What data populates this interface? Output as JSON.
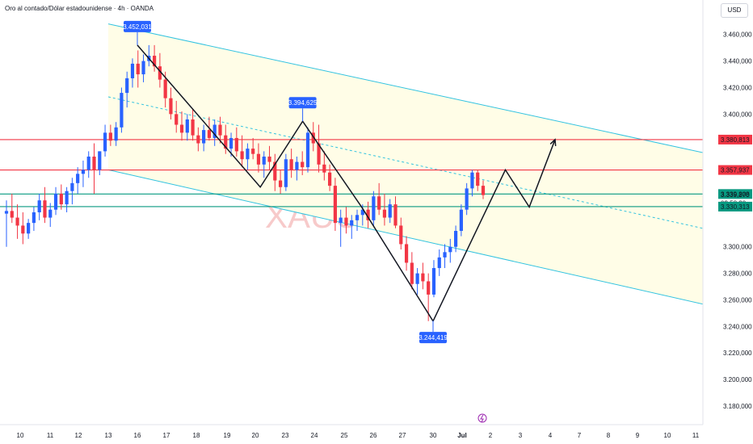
{
  "header": {
    "title": "Oro al contado/Dólar estadounidense · 4h · OANDA",
    "currency": "USD",
    "watermark": "XAUUSD 4h"
  },
  "chart_data": {
    "type": "candlestick",
    "y_ticks": [
      "3.460,000",
      "3.440,000",
      "3.420,000",
      "3.400,000",
      "3.300,000",
      "3.280,000",
      "3.260,000",
      "3.240,000",
      "3.220,000",
      "3.200,000",
      "3.180,000"
    ],
    "y_tick_values": [
      3460,
      3440,
      3420,
      3400,
      3300,
      3280,
      3260,
      3240,
      3220,
      3200,
      3180
    ],
    "ylim": [
      3166,
      3486
    ],
    "x_labels": [
      "10",
      "11",
      "12",
      "13",
      "16",
      "17",
      "18",
      "19",
      "20",
      "23",
      "24",
      "25",
      "26",
      "27",
      "30",
      "Jul",
      "2",
      "3",
      "4",
      "7",
      "8",
      "9",
      "10",
      "11"
    ],
    "colors": {
      "up": "#2962ff",
      "down": "#f23645",
      "channel": "#33c3e0",
      "channel_fill": "#fffde7",
      "resistance": "#f23645",
      "support": "#089981",
      "pattern": "#131722"
    },
    "price_labels": [
      {
        "text": "3.380,813",
        "value": 3380.8,
        "color": "#f23645"
      },
      {
        "text": "3.357,937",
        "value": 3357.9,
        "color": "#f23645"
      },
      {
        "text": "3.339,808",
        "value": 3339.8,
        "color": "#089981"
      },
      {
        "text": "3.339,270",
        "value": 3339.3,
        "color": "#f23645"
      },
      {
        "text": "02:58:30",
        "value": 3333.0,
        "color": "#f23645"
      },
      {
        "text": "3.330,313",
        "value": 3330.3,
        "color": "#089981"
      }
    ],
    "annotations": [
      {
        "text": "3.452,031",
        "x": 16,
        "value": 3452
      },
      {
        "text": "3.394,625",
        "x": 23.6,
        "value": 3394.6
      },
      {
        "text": "3.244,419",
        "x": 30,
        "value": 3244.4
      }
    ],
    "horizontal_lines": [
      {
        "value": 3380.8,
        "color": "#f23645"
      },
      {
        "value": 3357.9,
        "color": "#f23645"
      },
      {
        "value": 3339.8,
        "color": "#089981"
      },
      {
        "value": 3330.3,
        "color": "#089981"
      }
    ],
    "channel": {
      "upper": [
        [
          13,
          3468
        ],
        [
          61,
          3280
        ]
      ],
      "middle": [
        [
          13,
          3413
        ],
        [
          61,
          3221
        ]
      ],
      "lower": [
        [
          13,
          3358
        ],
        [
          61,
          3162
        ]
      ]
    },
    "pattern_path": [
      [
        16,
        3452
      ],
      [
        20.5,
        3345
      ],
      [
        23.6,
        3394.6
      ],
      [
        25.6,
        3330
      ],
      [
        30,
        3244
      ],
      [
        32.5,
        3358
      ],
      [
        33.3,
        3330
      ],
      [
        34.5,
        3380.8
      ]
    ],
    "candles": [
      {
        "o": 3325,
        "h": 3335,
        "l": 3300,
        "c": 3327
      },
      {
        "o": 3327,
        "h": 3340,
        "l": 3318,
        "c": 3322
      },
      {
        "o": 3322,
        "h": 3332,
        "l": 3306,
        "c": 3316
      },
      {
        "o": 3316,
        "h": 3326,
        "l": 3302,
        "c": 3310
      },
      {
        "o": 3310,
        "h": 3321,
        "l": 3306,
        "c": 3318
      },
      {
        "o": 3318,
        "h": 3330,
        "l": 3312,
        "c": 3326
      },
      {
        "o": 3326,
        "h": 3340,
        "l": 3320,
        "c": 3335
      },
      {
        "o": 3335,
        "h": 3345,
        "l": 3318,
        "c": 3322
      },
      {
        "o": 3322,
        "h": 3333,
        "l": 3315,
        "c": 3328
      },
      {
        "o": 3328,
        "h": 3345,
        "l": 3324,
        "c": 3340
      },
      {
        "o": 3340,
        "h": 3347,
        "l": 3328,
        "c": 3332
      },
      {
        "o": 3332,
        "h": 3345,
        "l": 3326,
        "c": 3342
      },
      {
        "o": 3342,
        "h": 3352,
        "l": 3332,
        "c": 3348
      },
      {
        "o": 3348,
        "h": 3360,
        "l": 3340,
        "c": 3355
      },
      {
        "o": 3355,
        "h": 3365,
        "l": 3345,
        "c": 3358
      },
      {
        "o": 3358,
        "h": 3372,
        "l": 3352,
        "c": 3368
      },
      {
        "o": 3368,
        "h": 3378,
        "l": 3340,
        "c": 3358
      },
      {
        "o": 3358,
        "h": 3372,
        "l": 3354,
        "c": 3372
      },
      {
        "o": 3372,
        "h": 3392,
        "l": 3368,
        "c": 3386
      },
      {
        "o": 3386,
        "h": 3392,
        "l": 3376,
        "c": 3380
      },
      {
        "o": 3380,
        "h": 3394,
        "l": 3376,
        "c": 3390
      },
      {
        "o": 3390,
        "h": 3420,
        "l": 3386,
        "c": 3416
      },
      {
        "o": 3416,
        "h": 3432,
        "l": 3405,
        "c": 3427
      },
      {
        "o": 3427,
        "h": 3442,
        "l": 3420,
        "c": 3438
      },
      {
        "o": 3438,
        "h": 3448,
        "l": 3420,
        "c": 3430
      },
      {
        "o": 3430,
        "h": 3445,
        "l": 3424,
        "c": 3440
      },
      {
        "o": 3440,
        "h": 3452,
        "l": 3436,
        "c": 3444
      },
      {
        "o": 3444,
        "h": 3452,
        "l": 3432,
        "c": 3436
      },
      {
        "o": 3436,
        "h": 3446,
        "l": 3420,
        "c": 3426
      },
      {
        "o": 3426,
        "h": 3432,
        "l": 3405,
        "c": 3412
      },
      {
        "o": 3412,
        "h": 3420,
        "l": 3396,
        "c": 3400
      },
      {
        "o": 3400,
        "h": 3410,
        "l": 3386,
        "c": 3392
      },
      {
        "o": 3392,
        "h": 3402,
        "l": 3380,
        "c": 3386
      },
      {
        "o": 3386,
        "h": 3400,
        "l": 3380,
        "c": 3396
      },
      {
        "o": 3396,
        "h": 3404,
        "l": 3380,
        "c": 3384
      },
      {
        "o": 3384,
        "h": 3390,
        "l": 3372,
        "c": 3378
      },
      {
        "o": 3378,
        "h": 3392,
        "l": 3372,
        "c": 3388
      },
      {
        "o": 3388,
        "h": 3398,
        "l": 3380,
        "c": 3382
      },
      {
        "o": 3382,
        "h": 3396,
        "l": 3376,
        "c": 3392
      },
      {
        "o": 3392,
        "h": 3398,
        "l": 3378,
        "c": 3384
      },
      {
        "o": 3384,
        "h": 3392,
        "l": 3370,
        "c": 3374
      },
      {
        "o": 3374,
        "h": 3386,
        "l": 3368,
        "c": 3382
      },
      {
        "o": 3382,
        "h": 3390,
        "l": 3368,
        "c": 3372
      },
      {
        "o": 3372,
        "h": 3384,
        "l": 3360,
        "c": 3366
      },
      {
        "o": 3366,
        "h": 3378,
        "l": 3358,
        "c": 3374
      },
      {
        "o": 3374,
        "h": 3382,
        "l": 3366,
        "c": 3370
      },
      {
        "o": 3370,
        "h": 3378,
        "l": 3356,
        "c": 3362
      },
      {
        "o": 3362,
        "h": 3372,
        "l": 3352,
        "c": 3368
      },
      {
        "o": 3368,
        "h": 3376,
        "l": 3358,
        "c": 3364
      },
      {
        "o": 3364,
        "h": 3370,
        "l": 3342,
        "c": 3350
      },
      {
        "o": 3350,
        "h": 3358,
        "l": 3340,
        "c": 3345
      },
      {
        "o": 3345,
        "h": 3370,
        "l": 3342,
        "c": 3366
      },
      {
        "o": 3366,
        "h": 3374,
        "l": 3352,
        "c": 3358
      },
      {
        "o": 3358,
        "h": 3368,
        "l": 3350,
        "c": 3364
      },
      {
        "o": 3364,
        "h": 3372,
        "l": 3354,
        "c": 3360
      },
      {
        "o": 3360,
        "h": 3390,
        "l": 3356,
        "c": 3386
      },
      {
        "o": 3386,
        "h": 3394,
        "l": 3372,
        "c": 3378
      },
      {
        "o": 3378,
        "h": 3392,
        "l": 3356,
        "c": 3362
      },
      {
        "o": 3362,
        "h": 3372,
        "l": 3350,
        "c": 3356
      },
      {
        "o": 3356,
        "h": 3362,
        "l": 3342,
        "c": 3346
      },
      {
        "o": 3346,
        "h": 3352,
        "l": 3312,
        "c": 3318
      },
      {
        "o": 3318,
        "h": 3328,
        "l": 3300,
        "c": 3322
      },
      {
        "o": 3322,
        "h": 3330,
        "l": 3310,
        "c": 3316
      },
      {
        "o": 3316,
        "h": 3324,
        "l": 3306,
        "c": 3320
      },
      {
        "o": 3320,
        "h": 3328,
        "l": 3312,
        "c": 3324
      },
      {
        "o": 3324,
        "h": 3332,
        "l": 3316,
        "c": 3328
      },
      {
        "o": 3328,
        "h": 3334,
        "l": 3314,
        "c": 3320
      },
      {
        "o": 3320,
        "h": 3342,
        "l": 3316,
        "c": 3338
      },
      {
        "o": 3338,
        "h": 3348,
        "l": 3324,
        "c": 3328
      },
      {
        "o": 3328,
        "h": 3340,
        "l": 3316,
        "c": 3322
      },
      {
        "o": 3322,
        "h": 3336,
        "l": 3318,
        "c": 3332
      },
      {
        "o": 3332,
        "h": 3338,
        "l": 3314,
        "c": 3316
      },
      {
        "o": 3316,
        "h": 3322,
        "l": 3298,
        "c": 3302
      },
      {
        "o": 3302,
        "h": 3308,
        "l": 3282,
        "c": 3288
      },
      {
        "o": 3288,
        "h": 3296,
        "l": 3268,
        "c": 3272
      },
      {
        "o": 3272,
        "h": 3284,
        "l": 3264,
        "c": 3280
      },
      {
        "o": 3280,
        "h": 3288,
        "l": 3268,
        "c": 3274
      },
      {
        "o": 3274,
        "h": 3280,
        "l": 3244,
        "c": 3264
      },
      {
        "o": 3264,
        "h": 3290,
        "l": 3262,
        "c": 3284
      },
      {
        "o": 3284,
        "h": 3298,
        "l": 3278,
        "c": 3292
      },
      {
        "o": 3292,
        "h": 3302,
        "l": 3284,
        "c": 3296
      },
      {
        "o": 3296,
        "h": 3306,
        "l": 3288,
        "c": 3300
      },
      {
        "o": 3300,
        "h": 3316,
        "l": 3296,
        "c": 3312
      },
      {
        "o": 3312,
        "h": 3332,
        "l": 3308,
        "c": 3328
      },
      {
        "o": 3328,
        "h": 3348,
        "l": 3324,
        "c": 3344
      },
      {
        "o": 3344,
        "h": 3358,
        "l": 3338,
        "c": 3356
      },
      {
        "o": 3356,
        "h": 3358,
        "l": 3342,
        "c": 3346
      },
      {
        "o": 3346,
        "h": 3350,
        "l": 3336,
        "c": 3339
      }
    ]
  }
}
